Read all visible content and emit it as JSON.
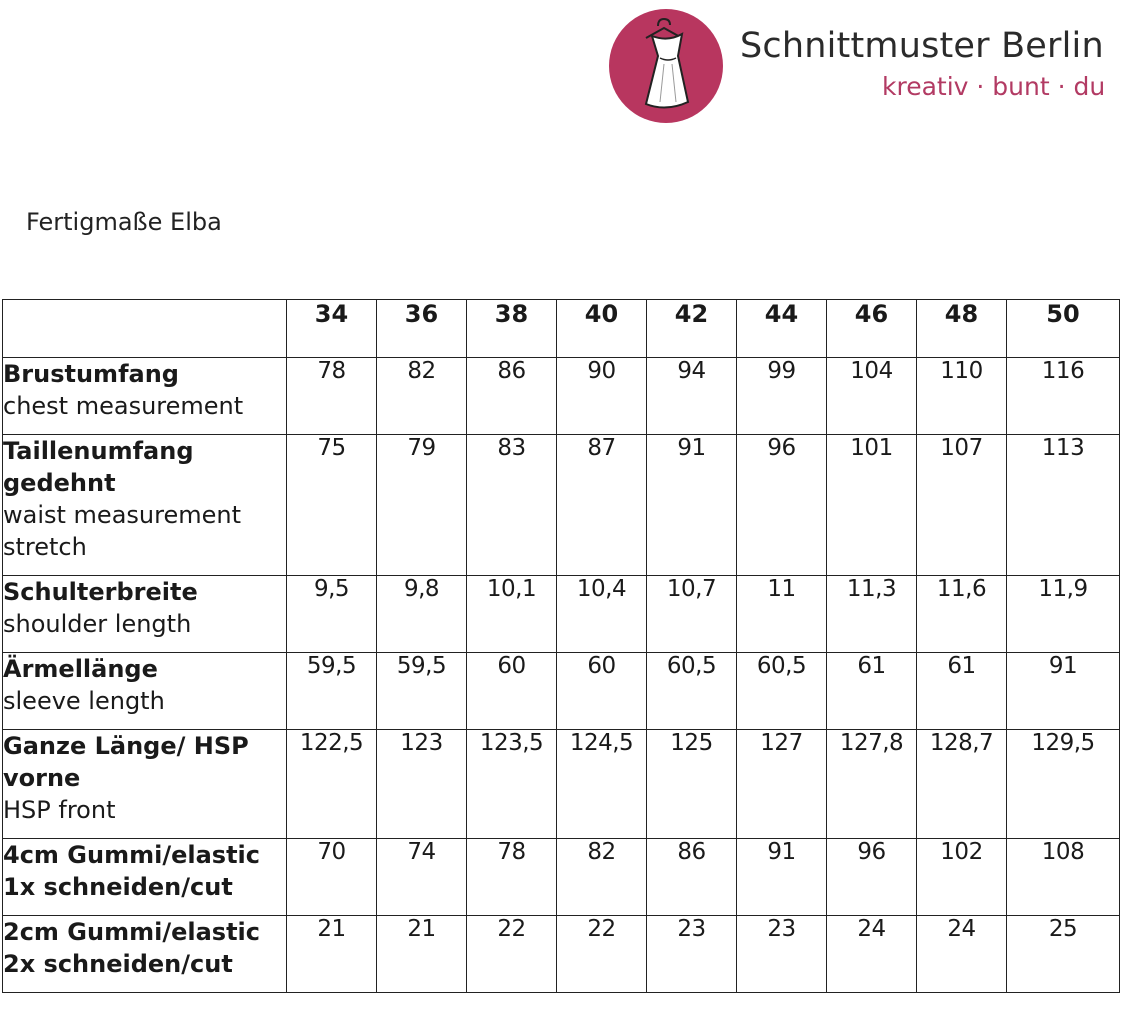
{
  "header": {
    "brand_name": "Schnittmuster Berlin",
    "brand_tagline": "kreativ · bunt · du",
    "logo_icon": "dress-on-hanger-icon",
    "logo_color": "#b8365f"
  },
  "title": "Fertigmaße Elba",
  "table": {
    "sizes": [
      "34",
      "36",
      "38",
      "40",
      "42",
      "44",
      "46",
      "48",
      "50"
    ],
    "rows": [
      {
        "label_de": "Brustumfang",
        "label_en": "chest measurement",
        "values": [
          "78",
          "82",
          "86",
          "90",
          "94",
          "99",
          "104",
          "110",
          "116"
        ]
      },
      {
        "label_de": "Taillenumfang gedehnt",
        "label_en": "waist measurement stretch",
        "values": [
          "75",
          "79",
          "83",
          "87",
          "91",
          "96",
          "101",
          "107",
          "113"
        ]
      },
      {
        "label_de": "Schulterbreite",
        "label_en": "shoulder length",
        "values": [
          "9,5",
          "9,8",
          "10,1",
          "10,4",
          "10,7",
          "11",
          "11,3",
          "11,6",
          "11,9"
        ]
      },
      {
        "label_de": "Ärmellänge",
        "label_en": "sleeve length",
        "values": [
          "59,5",
          "59,5",
          "60",
          "60",
          "60,5",
          "60,5",
          "61",
          "61",
          "91"
        ]
      },
      {
        "label_de": "Ganze Länge/ HSP vorne",
        "label_en": "HSP front",
        "values": [
          "122,5",
          "123",
          "123,5",
          "124,5",
          "125",
          "127",
          "127,8",
          "128,7",
          "129,5"
        ]
      },
      {
        "label_de": "4cm Gummi/elastic 1x schneiden/cut",
        "label_en": "",
        "values": [
          "70",
          "74",
          "78",
          "82",
          "86",
          "91",
          "96",
          "102",
          "108"
        ]
      },
      {
        "label_de": "2cm Gummi/elastic 2x schneiden/cut",
        "label_en": "",
        "values": [
          "21",
          "21",
          "22",
          "22",
          "23",
          "23",
          "24",
          "24",
          "25"
        ]
      }
    ]
  }
}
